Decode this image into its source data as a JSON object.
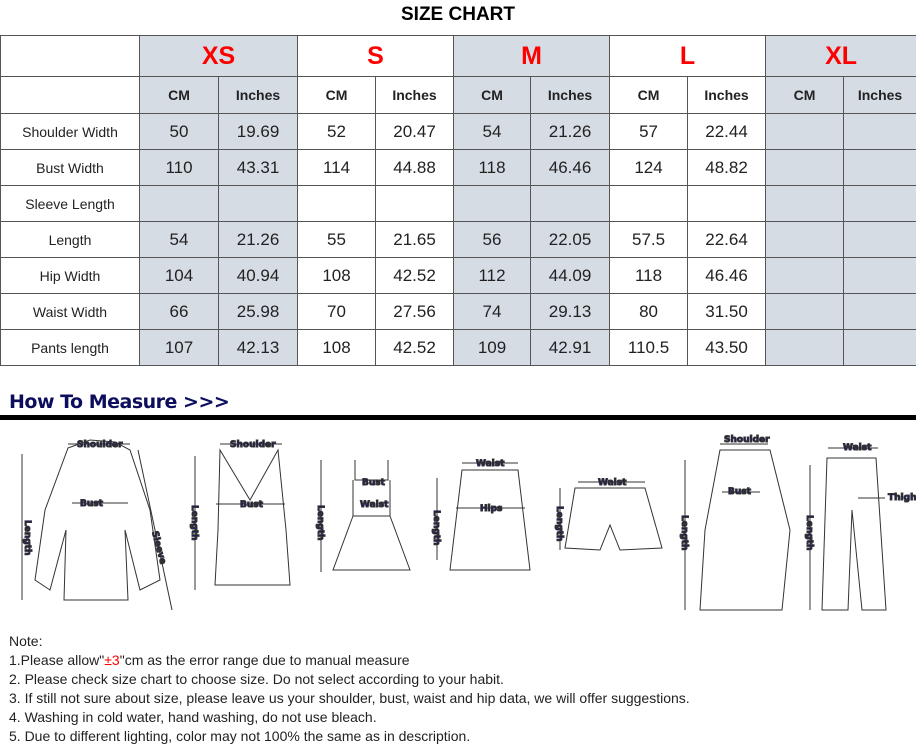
{
  "title": "SIZE CHART",
  "sizes": [
    "XS",
    "S",
    "M",
    "L",
    "XL"
  ],
  "units": [
    "CM",
    "Inches"
  ],
  "rows": [
    {
      "label": "Shoulder Width",
      "values": [
        "50",
        "19.69",
        "52",
        "20.47",
        "54",
        "21.26",
        "57",
        "22.44",
        "",
        ""
      ]
    },
    {
      "label": "Bust Width",
      "values": [
        "110",
        "43.31",
        "114",
        "44.88",
        "118",
        "46.46",
        "124",
        "48.82",
        "",
        ""
      ]
    },
    {
      "label": "Sleeve Length",
      "values": [
        "",
        "",
        "",
        "",
        "",
        "",
        "",
        "",
        "",
        ""
      ]
    },
    {
      "label": "Length",
      "values": [
        "54",
        "21.26",
        "55",
        "21.65",
        "56",
        "22.05",
        "57.5",
        "22.64",
        "",
        ""
      ]
    },
    {
      "label": "Hip Width",
      "values": [
        "104",
        "40.94",
        "108",
        "42.52",
        "112",
        "44.09",
        "118",
        "46.46",
        "",
        ""
      ]
    },
    {
      "label": "Waist Width",
      "values": [
        "66",
        "25.98",
        "70",
        "27.56",
        "74",
        "29.13",
        "80",
        "31.50",
        "",
        ""
      ]
    },
    {
      "label": "Pants length",
      "values": [
        "107",
        "42.13",
        "108",
        "42.52",
        "109",
        "42.91",
        "110.5",
        "43.50",
        "",
        ""
      ]
    }
  ],
  "shade_color": "#d6dce4",
  "size_color": "#ff0000",
  "how_to_measure": "How To Measure >>>",
  "labels": {
    "shoulder": "Shoulder",
    "bust": "Bust",
    "sleeve": "Sleeve",
    "length": "Length",
    "waist": "Waist",
    "hips": "Hips",
    "thigh": "Thigh"
  },
  "notes": {
    "heading": "Note:",
    "n1_pre": "1.Please allow\"",
    "n1_red": "±3",
    "n1_post": "\"cm as the error range due to manual measure",
    "n2": "2. Please check size chart to choose size. Do not select according to your habit.",
    "n3": "3. If still not sure about size, please leave us your shoulder, bust, waist and hip data, we will offer suggestions.",
    "n4": "4. Washing in cold water, hand washing, do not use bleach.",
    "n5": "5. Due to different lighting, color may not 100% the same as in description."
  }
}
